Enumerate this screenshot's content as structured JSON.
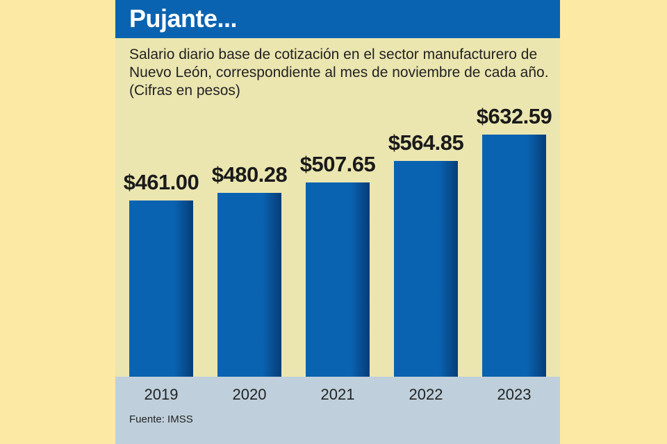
{
  "chart_data": {
    "type": "bar",
    "title": "Pujante...",
    "subtitle": "Salario diario base de cotización en el sector manufacturero de Nuevo León, correspondiente al mes de noviembre de cada año. (Cifras en pesos)",
    "categories": [
      "2019",
      "2020",
      "2021",
      "2022",
      "2023"
    ],
    "values": [
      461.0,
      480.28,
      507.65,
      564.85,
      632.59
    ],
    "value_labels": [
      "$461.00",
      "$480.28",
      "$507.65",
      "$564.85",
      "$632.59"
    ],
    "xlabel": "",
    "ylabel": "",
    "ylim": [
      0,
      640
    ],
    "grid": false,
    "source": "Fuente: IMSS",
    "colors": {
      "bar": "#0a63b0",
      "header": "#0a63b0",
      "plot_bg": "#ebe6b0",
      "axis_bg": "#bfd0dc",
      "page_bg": "#fbe9a4"
    }
  }
}
